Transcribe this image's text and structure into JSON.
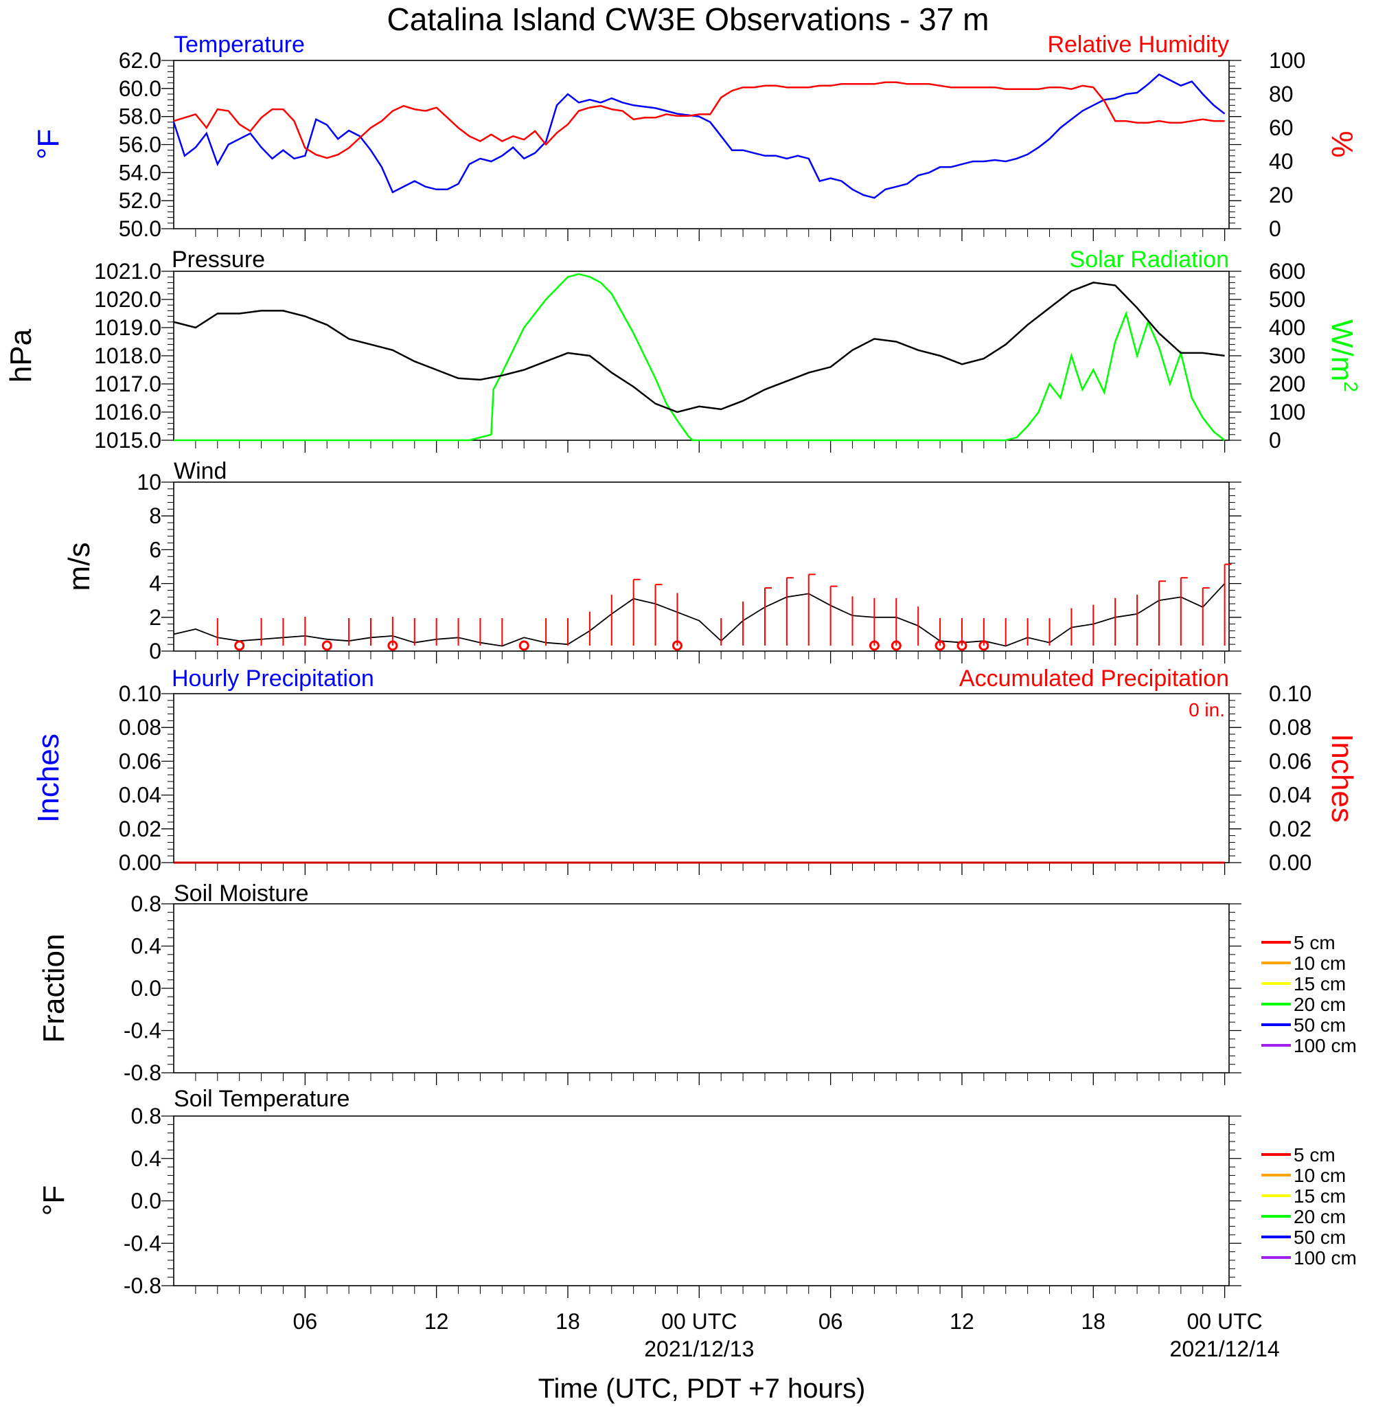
{
  "figure_title": "Catalina Island CW3E Observations - 37 m",
  "x_axis": {
    "label": "Time (UTC, PDT +7 hours)",
    "ticks": [
      {
        "hour": 6,
        "label": "06",
        "date": ""
      },
      {
        "hour": 12,
        "label": "12",
        "date": ""
      },
      {
        "hour": 18,
        "label": "18",
        "date": ""
      },
      {
        "hour": 24,
        "label": "00 UTC",
        "date": "2021/12/13"
      },
      {
        "hour": 30,
        "label": "06",
        "date": ""
      },
      {
        "hour": 36,
        "label": "12",
        "date": ""
      },
      {
        "hour": 42,
        "label": "18",
        "date": ""
      },
      {
        "hour": 48,
        "label": "00 UTC",
        "date": "2021/12/14"
      }
    ]
  },
  "colors": {
    "temperature": "#0000ff",
    "humidity": "#ff0000",
    "pressure": "#000000",
    "solar": "#00ff00",
    "wind": "#000000",
    "barb": "#ff0000"
  },
  "chart_data": [
    {
      "type": "line",
      "id": "temp_rh",
      "title_left": "Temperature",
      "title_right": "Relative Humidity",
      "ylabel_left": "°F",
      "ylabel_right": "%",
      "xlim": [
        0,
        48
      ],
      "ylim_left": [
        50,
        62
      ],
      "ylim_right": [
        0,
        100
      ],
      "yticks_left": [
        "62.0",
        "60.0",
        "58.0",
        "56.0",
        "54.0",
        "52.0",
        "50.0"
      ],
      "yticks_right": [
        "100",
        "80",
        "60",
        "40",
        "20",
        "0"
      ],
      "series": [
        {
          "name": "Temperature",
          "axis": "left",
          "x": [
            0,
            0.5,
            1,
            1.5,
            2,
            2.5,
            3,
            3.5,
            4,
            4.5,
            5,
            5.5,
            6,
            6.5,
            7,
            7.5,
            8,
            8.5,
            9,
            9.5,
            10,
            10.5,
            11,
            11.5,
            12,
            12.5,
            13,
            13.5,
            14,
            14.5,
            15,
            15.5,
            16,
            16.5,
            17,
            17.5,
            18,
            18.5,
            19,
            19.5,
            20,
            20.5,
            21,
            21.5,
            22,
            22.5,
            23,
            23.5,
            24,
            24.5,
            25,
            25.5,
            26,
            26.5,
            27,
            27.5,
            28,
            28.5,
            29,
            29.5,
            30,
            30.5,
            31,
            31.5,
            32,
            32.5,
            33,
            33.5,
            34,
            34.5,
            35,
            35.5,
            36,
            36.5,
            37,
            37.5,
            38,
            38.5,
            39,
            39.5,
            40,
            40.5,
            41,
            41.5,
            42,
            42.5,
            43,
            43.5,
            44,
            44.5,
            45,
            45.5,
            46,
            46.5,
            47,
            47.5,
            48
          ],
          "values": [
            57.6,
            55.2,
            55.8,
            56.8,
            54.6,
            56.0,
            56.4,
            56.8,
            55.8,
            55.0,
            55.6,
            55.0,
            55.2,
            57.8,
            57.4,
            56.4,
            57.0,
            56.6,
            55.6,
            54.4,
            52.6,
            53.0,
            53.4,
            53.0,
            52.8,
            52.8,
            53.2,
            54.6,
            55.0,
            54.8,
            55.2,
            55.8,
            55.0,
            55.4,
            56.2,
            58.8,
            59.6,
            59.0,
            59.2,
            59.0,
            59.3,
            59.0,
            58.8,
            58.7,
            58.6,
            58.4,
            58.2,
            58.1,
            58.0,
            57.6,
            56.6,
            55.6,
            55.6,
            55.4,
            55.2,
            55.2,
            55.0,
            55.2,
            55.0,
            53.4,
            53.6,
            53.4,
            52.8,
            52.4,
            52.2,
            52.8,
            53.0,
            53.2,
            53.8,
            54.0,
            54.4,
            54.4,
            54.6,
            54.8,
            54.8,
            54.9,
            54.8,
            55.0,
            55.3,
            55.8,
            56.4,
            57.2,
            57.8,
            58.4,
            58.8,
            59.2,
            59.3,
            59.6,
            59.7,
            60.3,
            61.0,
            60.6,
            60.2,
            60.5,
            59.6,
            58.8,
            58.2
          ]
        },
        {
          "name": "Relative Humidity",
          "axis": "right",
          "x": [
            0,
            0.5,
            1,
            1.5,
            2,
            2.5,
            3,
            3.5,
            4,
            4.5,
            5,
            5.5,
            6,
            6.5,
            7,
            7.5,
            8,
            8.5,
            9,
            9.5,
            10,
            10.5,
            11,
            11.5,
            12,
            12.5,
            13,
            13.5,
            14,
            14.5,
            15,
            15.5,
            16,
            16.5,
            17,
            17.5,
            18,
            18.5,
            19,
            19.5,
            20,
            20.5,
            21,
            21.5,
            22,
            22.5,
            23,
            23.5,
            24,
            24.5,
            25,
            25.5,
            26,
            26.5,
            27,
            27.5,
            28,
            28.5,
            29,
            29.5,
            30,
            30.5,
            31,
            31.5,
            32,
            32.5,
            33,
            33.5,
            34,
            34.5,
            35,
            35.5,
            36,
            36.5,
            37,
            37.5,
            38,
            38.5,
            39,
            39.5,
            40,
            40.5,
            41,
            41.5,
            42,
            42.5,
            43,
            43.5,
            44,
            44.5,
            45,
            45.5,
            46,
            46.5,
            47,
            47.5,
            48
          ],
          "values": [
            64,
            66,
            68,
            60,
            71,
            70,
            62,
            58,
            66,
            71,
            71,
            64,
            48,
            44,
            42,
            44,
            48,
            54,
            60,
            64,
            70,
            73,
            71,
            70,
            72,
            66,
            60,
            55,
            52,
            56,
            52,
            55,
            53,
            58,
            50,
            57,
            62,
            70,
            72,
            73,
            71,
            70,
            65,
            66,
            66,
            68,
            67,
            67,
            68,
            68,
            78,
            82,
            84,
            84,
            85,
            85,
            84,
            84,
            84,
            85,
            85,
            86,
            86,
            86,
            86,
            87,
            87,
            86,
            86,
            86,
            85,
            84,
            84,
            84,
            84,
            84,
            83,
            83,
            83,
            83,
            84,
            84,
            83,
            85,
            84,
            76,
            64,
            64,
            63,
            63,
            64,
            63,
            63,
            64,
            65,
            64,
            64
          ]
        }
      ]
    },
    {
      "type": "line",
      "id": "pressure_solar",
      "title_left": "Pressure",
      "title_right": "Solar Radiation",
      "ylabel_left": "hPa",
      "ylabel_right": "W/m",
      "ylabel_right_sup": "2",
      "xlim": [
        0,
        48
      ],
      "ylim_left": [
        1015,
        1021
      ],
      "ylim_right": [
        0,
        600
      ],
      "yticks_left": [
        "1021.0",
        "1020.0",
        "1019.0",
        "1018.0",
        "1017.0",
        "1016.0",
        "1015.0"
      ],
      "yticks_right": [
        "600",
        "500",
        "400",
        "300",
        "200",
        "100",
        "0"
      ],
      "series": [
        {
          "name": "Pressure",
          "axis": "left",
          "x": [
            0,
            1,
            2,
            3,
            4,
            5,
            6,
            7,
            8,
            9,
            10,
            11,
            12,
            13,
            14,
            15,
            16,
            17,
            18,
            19,
            20,
            21,
            22,
            23,
            24,
            25,
            26,
            27,
            28,
            29,
            30,
            31,
            32,
            33,
            34,
            35,
            36,
            37,
            38,
            39,
            40,
            41,
            42,
            43,
            44,
            45,
            46,
            47,
            48
          ],
          "values": [
            1019.2,
            1019.0,
            1019.5,
            1019.5,
            1019.6,
            1019.6,
            1019.4,
            1019.1,
            1018.6,
            1018.4,
            1018.2,
            1017.8,
            1017.5,
            1017.2,
            1017.15,
            1017.3,
            1017.5,
            1017.8,
            1018.1,
            1018.0,
            1017.4,
            1016.9,
            1016.3,
            1016.0,
            1016.2,
            1016.1,
            1016.4,
            1016.8,
            1017.1,
            1017.4,
            1017.6,
            1018.2,
            1018.6,
            1018.5,
            1018.2,
            1018.0,
            1017.7,
            1017.9,
            1018.4,
            1019.1,
            1019.7,
            1020.3,
            1020.6,
            1020.5,
            1019.7,
            1018.8,
            1018.1,
            1018.1,
            1018.0
          ]
        },
        {
          "name": "Solar Radiation",
          "axis": "right",
          "x": [
            0,
            13.5,
            14.5,
            14.6,
            15,
            16,
            17,
            18,
            18.5,
            19,
            19.5,
            20,
            20.5,
            21,
            21.5,
            22,
            22.5,
            23,
            23.5,
            23.7,
            24,
            25,
            38,
            38.5,
            39,
            39.5,
            40,
            40.5,
            41,
            41.5,
            42,
            42.5,
            43,
            43.5,
            44,
            44.5,
            45,
            45.5,
            46,
            46.5,
            47,
            47.5,
            48
          ],
          "values": [
            0,
            0,
            20,
            180,
            240,
            400,
            500,
            580,
            590,
            580,
            560,
            520,
            450,
            380,
            300,
            220,
            130,
            70,
            15,
            0,
            0,
            0,
            0,
            10,
            50,
            100,
            200,
            150,
            300,
            180,
            250,
            170,
            350,
            450,
            300,
            420,
            330,
            200,
            310,
            150,
            80,
            30,
            0
          ]
        }
      ]
    },
    {
      "type": "line",
      "id": "wind",
      "title_left": "Wind",
      "ylabel_left": "m/s",
      "xlim": [
        0,
        48
      ],
      "ylim_left": [
        0,
        10
      ],
      "yticks_left": [
        "10",
        "8",
        "6",
        "4",
        "2",
        "0"
      ],
      "series": [
        {
          "name": "Wind",
          "axis": "left",
          "x": [
            0,
            1,
            2,
            3,
            4,
            5,
            6,
            7,
            8,
            9,
            10,
            11,
            12,
            13,
            14,
            15,
            16,
            17,
            18,
            19,
            20,
            21,
            22,
            23,
            24,
            25,
            26,
            27,
            28,
            29,
            30,
            31,
            32,
            33,
            34,
            35,
            36,
            37,
            38,
            39,
            40,
            41,
            42,
            43,
            44,
            45,
            46,
            47,
            48
          ],
          "values": [
            1.0,
            1.3,
            0.8,
            0.6,
            0.7,
            0.8,
            0.9,
            0.7,
            0.6,
            0.8,
            0.9,
            0.5,
            0.7,
            0.8,
            0.5,
            0.3,
            0.8,
            0.5,
            0.4,
            1.2,
            2.2,
            3.1,
            2.8,
            2.3,
            1.8,
            0.6,
            1.8,
            2.6,
            3.2,
            3.4,
            2.7,
            2.1,
            2.0,
            2.0,
            1.5,
            0.6,
            0.5,
            0.6,
            0.3,
            0.8,
            0.5,
            1.4,
            1.6,
            2.0,
            2.2,
            3.0,
            3.2,
            2.6,
            4.0
          ]
        }
      ],
      "calm_circles_hours": [
        3,
        7,
        10,
        16,
        23,
        32,
        33,
        35,
        36,
        37
      ],
      "barbs_hours": [
        2,
        4,
        5,
        6,
        8,
        9,
        10,
        11,
        12,
        13,
        14,
        15,
        17,
        18,
        19,
        20,
        21,
        22,
        23,
        25,
        26,
        27,
        28,
        29,
        30,
        31,
        32,
        33,
        34,
        35,
        36,
        37,
        38,
        39,
        40,
        41,
        42,
        43,
        44,
        45,
        46,
        47,
        48
      ]
    },
    {
      "type": "line",
      "id": "precip",
      "title_left": "Hourly Precipitation",
      "title_right": "Accumulated Precipitation",
      "annotation": "0 in.",
      "ylabel_left": "Inches",
      "ylabel_right": "Inches",
      "xlim": [
        0,
        48
      ],
      "ylim_left": [
        0,
        0.1
      ],
      "yticks_left": [
        "0.10",
        "0.08",
        "0.06",
        "0.04",
        "0.02",
        "0.00"
      ],
      "yticks_right": [
        "0.10",
        "0.08",
        "0.06",
        "0.04",
        "0.02",
        "0.00"
      ],
      "series": [
        {
          "name": "Accumulated Precipitation",
          "axis": "left",
          "x": [
            0,
            48
          ],
          "values": [
            0,
            0
          ]
        }
      ]
    },
    {
      "type": "line",
      "id": "soil_moisture",
      "title_left": "Soil Moisture",
      "ylabel_left": "Fraction",
      "xlim": [
        0,
        48
      ],
      "ylim_left": [
        -1,
        1
      ],
      "yticks_left": [
        "0.8",
        "0.4",
        "0.0",
        "-0.4",
        "-0.8"
      ],
      "legend": [
        {
          "label": "5 cm",
          "color": "#ff0000"
        },
        {
          "label": "10 cm",
          "color": "#ffa500"
        },
        {
          "label": "15 cm",
          "color": "#ffff00"
        },
        {
          "label": "20 cm",
          "color": "#00ff00"
        },
        {
          "label": "50 cm",
          "color": "#0000ff"
        },
        {
          "label": "100 cm",
          "color": "#a020f0"
        }
      ],
      "series": []
    },
    {
      "type": "line",
      "id": "soil_temperature",
      "title_left": "Soil Temperature",
      "ylabel_left": "°F",
      "xlim": [
        0,
        48
      ],
      "ylim_left": [
        -1,
        1
      ],
      "yticks_left": [
        "0.8",
        "0.4",
        "0.0",
        "-0.4",
        "-0.8"
      ],
      "legend": [
        {
          "label": "5 cm",
          "color": "#ff0000"
        },
        {
          "label": "10 cm",
          "color": "#ffa500"
        },
        {
          "label": "15 cm",
          "color": "#ffff00"
        },
        {
          "label": "20 cm",
          "color": "#00ff00"
        },
        {
          "label": "50 cm",
          "color": "#0000ff"
        },
        {
          "label": "100 cm",
          "color": "#a020f0"
        }
      ],
      "series": []
    }
  ]
}
